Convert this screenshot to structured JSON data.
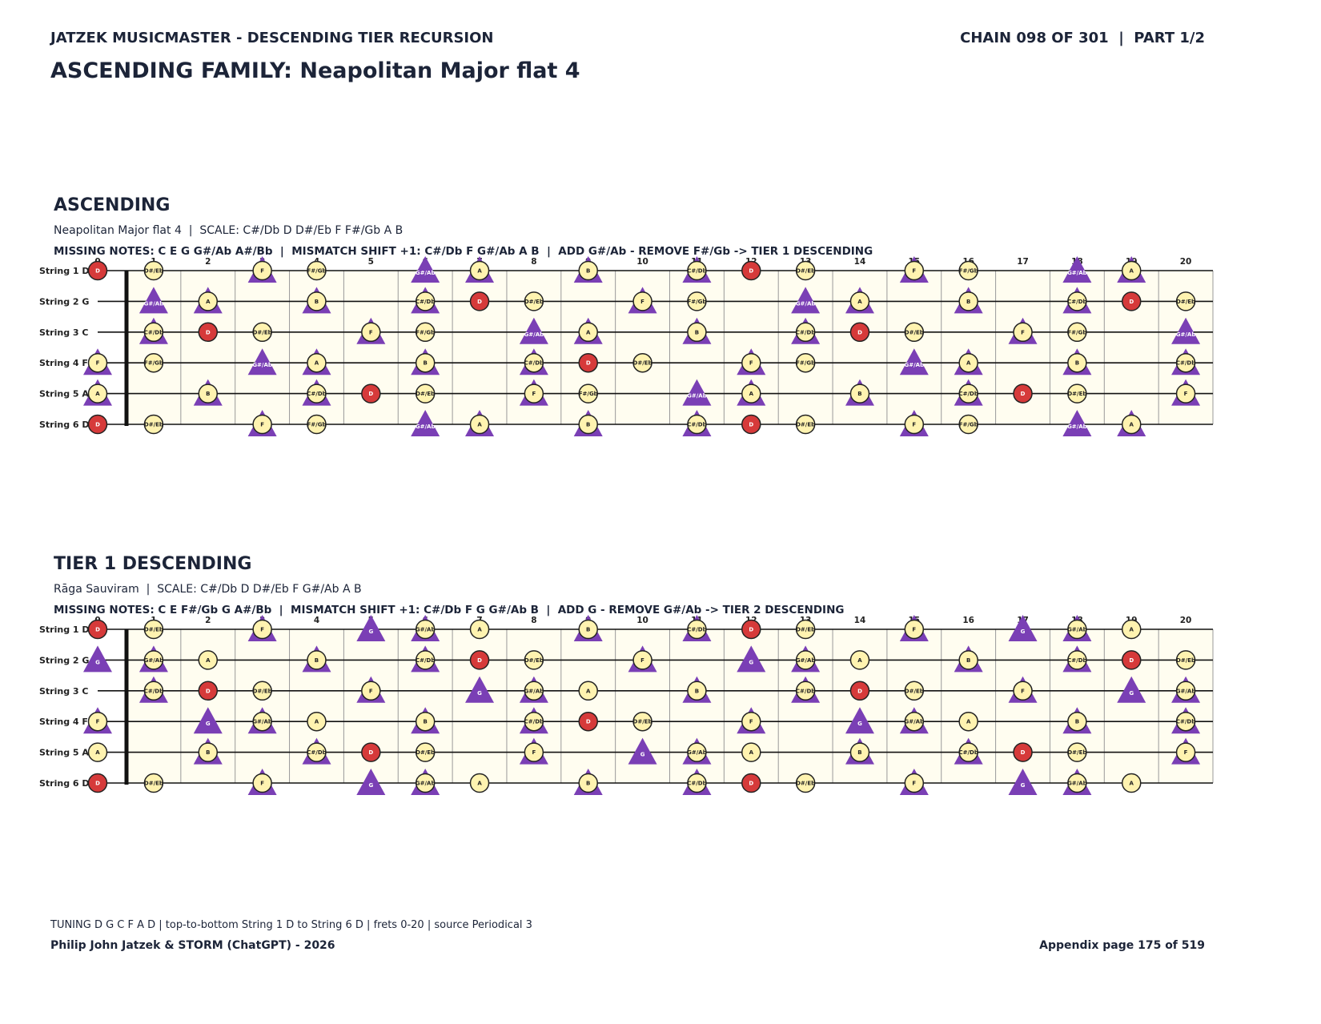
{
  "header": {
    "brand": "JATZEK MUSICMASTER - DESCENDING TIER RECURSION",
    "chain": "CHAIN 098 OF 301  |  PART 1/2",
    "title": "ASCENDING FAMILY: Neapolitan Major flat 4"
  },
  "sections": [
    {
      "heading": "ASCENDING",
      "subtitle": "Neapolitan Major flat 4  |  SCALE: C#/Db D D#/Eb F F#/Gb A B",
      "missing": "MISSING NOTES: C E G G#/Ab A#/Bb  |  MISMATCH SHIFT +1: C#/Db F G#/Ab A B  |  ADD G#/Ab - REMOVE F#/Gb -> TIER 1 DESCENDING",
      "frets": [
        0,
        1,
        2,
        3,
        4,
        5,
        6,
        7,
        8,
        9,
        10,
        11,
        12,
        13,
        14,
        15,
        16,
        17,
        18,
        19,
        20
      ],
      "marker_style": {
        "D": "root",
        "C#/Db": "shift",
        "D#/Eb": "scale",
        "F": "shift",
        "F#/Gb": "scale",
        "G#/Ab": "added",
        "A": "shift",
        "B": "shift"
      },
      "strings": [
        {
          "label": "String 1 D",
          "notes": [
            "D",
            "D#/Eb",
            null,
            "F",
            "F#/Gb",
            null,
            "G#/Ab",
            "A",
            null,
            "B",
            null,
            "C#/Db",
            "D",
            "D#/Eb",
            null,
            "F",
            "F#/Gb",
            null,
            "G#/Ab",
            "A",
            null
          ]
        },
        {
          "label": "String 2 G",
          "notes": [
            null,
            "G#/Ab",
            "A",
            null,
            "B",
            null,
            "C#/Db",
            "D",
            "D#/Eb",
            null,
            "F",
            "F#/Gb",
            null,
            "G#/Ab",
            "A",
            null,
            "B",
            null,
            "C#/Db",
            "D",
            "D#/Eb"
          ]
        },
        {
          "label": "String 3 C",
          "notes": [
            null,
            "C#/Db",
            "D",
            "D#/Eb",
            null,
            "F",
            "F#/Gb",
            null,
            "G#/Ab",
            "A",
            null,
            "B",
            null,
            "C#/Db",
            "D",
            "D#/Eb",
            null,
            "F",
            "F#/Gb",
            null,
            "G#/Ab"
          ]
        },
        {
          "label": "String 4 F",
          "notes": [
            "F",
            "F#/Gb",
            null,
            "G#/Ab",
            "A",
            null,
            "B",
            null,
            "C#/Db",
            "D",
            "D#/Eb",
            null,
            "F",
            "F#/Gb",
            null,
            "G#/Ab",
            "A",
            null,
            "B",
            null,
            "C#/Db"
          ]
        },
        {
          "label": "String 5 A",
          "notes": [
            "A",
            null,
            "B",
            null,
            "C#/Db",
            "D",
            "D#/Eb",
            null,
            "F",
            "F#/Gb",
            null,
            "G#/Ab",
            "A",
            null,
            "B",
            null,
            "C#/Db",
            "D",
            "D#/Eb",
            null,
            "F"
          ]
        },
        {
          "label": "String 6 D",
          "notes": [
            "D",
            "D#/Eb",
            null,
            "F",
            "F#/Gb",
            null,
            "G#/Ab",
            "A",
            null,
            "B",
            null,
            "C#/Db",
            "D",
            "D#/Eb",
            null,
            "F",
            "F#/Gb",
            null,
            "G#/Ab",
            "A",
            null
          ]
        }
      ]
    },
    {
      "heading": "TIER 1 DESCENDING",
      "subtitle": "Rāga Sauviram  |  SCALE: C#/Db D D#/Eb F G#/Ab A B",
      "missing": "MISSING NOTES: C E F#/Gb G A#/Bb  |  MISMATCH SHIFT +1: C#/Db F G G#/Ab B  |  ADD G - REMOVE G#/Ab -> TIER 2 DESCENDING",
      "frets": [
        0,
        1,
        2,
        3,
        4,
        5,
        6,
        7,
        8,
        9,
        10,
        11,
        12,
        13,
        14,
        15,
        16,
        17,
        18,
        19,
        20
      ],
      "marker_style": {
        "D": "root",
        "C#/Db": "shift",
        "D#/Eb": "scale",
        "F": "shift",
        "G": "added",
        "G#/Ab": "shift",
        "A": "scale",
        "B": "shift"
      },
      "strings": [
        {
          "label": "String 1 D",
          "notes": [
            "D",
            "D#/Eb",
            null,
            "F",
            null,
            "G",
            "G#/Ab",
            "A",
            null,
            "B",
            null,
            "C#/Db",
            "D",
            "D#/Eb",
            null,
            "F",
            null,
            "G",
            "G#/Ab",
            "A",
            null
          ]
        },
        {
          "label": "String 2 G",
          "notes": [
            "G",
            "G#/Ab",
            "A",
            null,
            "B",
            null,
            "C#/Db",
            "D",
            "D#/Eb",
            null,
            "F",
            null,
            "G",
            "G#/Ab",
            "A",
            null,
            "B",
            null,
            "C#/Db",
            "D",
            "D#/Eb"
          ]
        },
        {
          "label": "String 3 C",
          "notes": [
            null,
            "C#/Db",
            "D",
            "D#/Eb",
            null,
            "F",
            null,
            "G",
            "G#/Ab",
            "A",
            null,
            "B",
            null,
            "C#/Db",
            "D",
            "D#/Eb",
            null,
            "F",
            null,
            "G",
            "G#/Ab"
          ]
        },
        {
          "label": "String 4 F",
          "notes": [
            "F",
            null,
            "G",
            "G#/Ab",
            "A",
            null,
            "B",
            null,
            "C#/Db",
            "D",
            "D#/Eb",
            null,
            "F",
            null,
            "G",
            "G#/Ab",
            "A",
            null,
            "B",
            null,
            "C#/Db"
          ]
        },
        {
          "label": "String 5 A",
          "notes": [
            "A",
            null,
            "B",
            null,
            "C#/Db",
            "D",
            "D#/Eb",
            null,
            "F",
            null,
            "G",
            "G#/Ab",
            "A",
            null,
            "B",
            null,
            "C#/Db",
            "D",
            "D#/Eb",
            null,
            "F"
          ]
        },
        {
          "label": "String 6 D",
          "notes": [
            "D",
            "D#/Eb",
            null,
            "F",
            null,
            "G",
            "G#/Ab",
            "A",
            null,
            "B",
            null,
            "C#/Db",
            "D",
            "D#/Eb",
            null,
            "F",
            null,
            "G",
            "G#/Ab",
            "A",
            null
          ]
        }
      ]
    }
  ],
  "footer": {
    "tuning": "TUNING D G C F A D | top-to-bottom String 1 D to String 6 D | frets 0-20 | source Periodical 3",
    "credit": "Philip John Jatzek & STORM (ChatGPT) - 2026",
    "page": "Appendix page 175 of 519"
  }
}
